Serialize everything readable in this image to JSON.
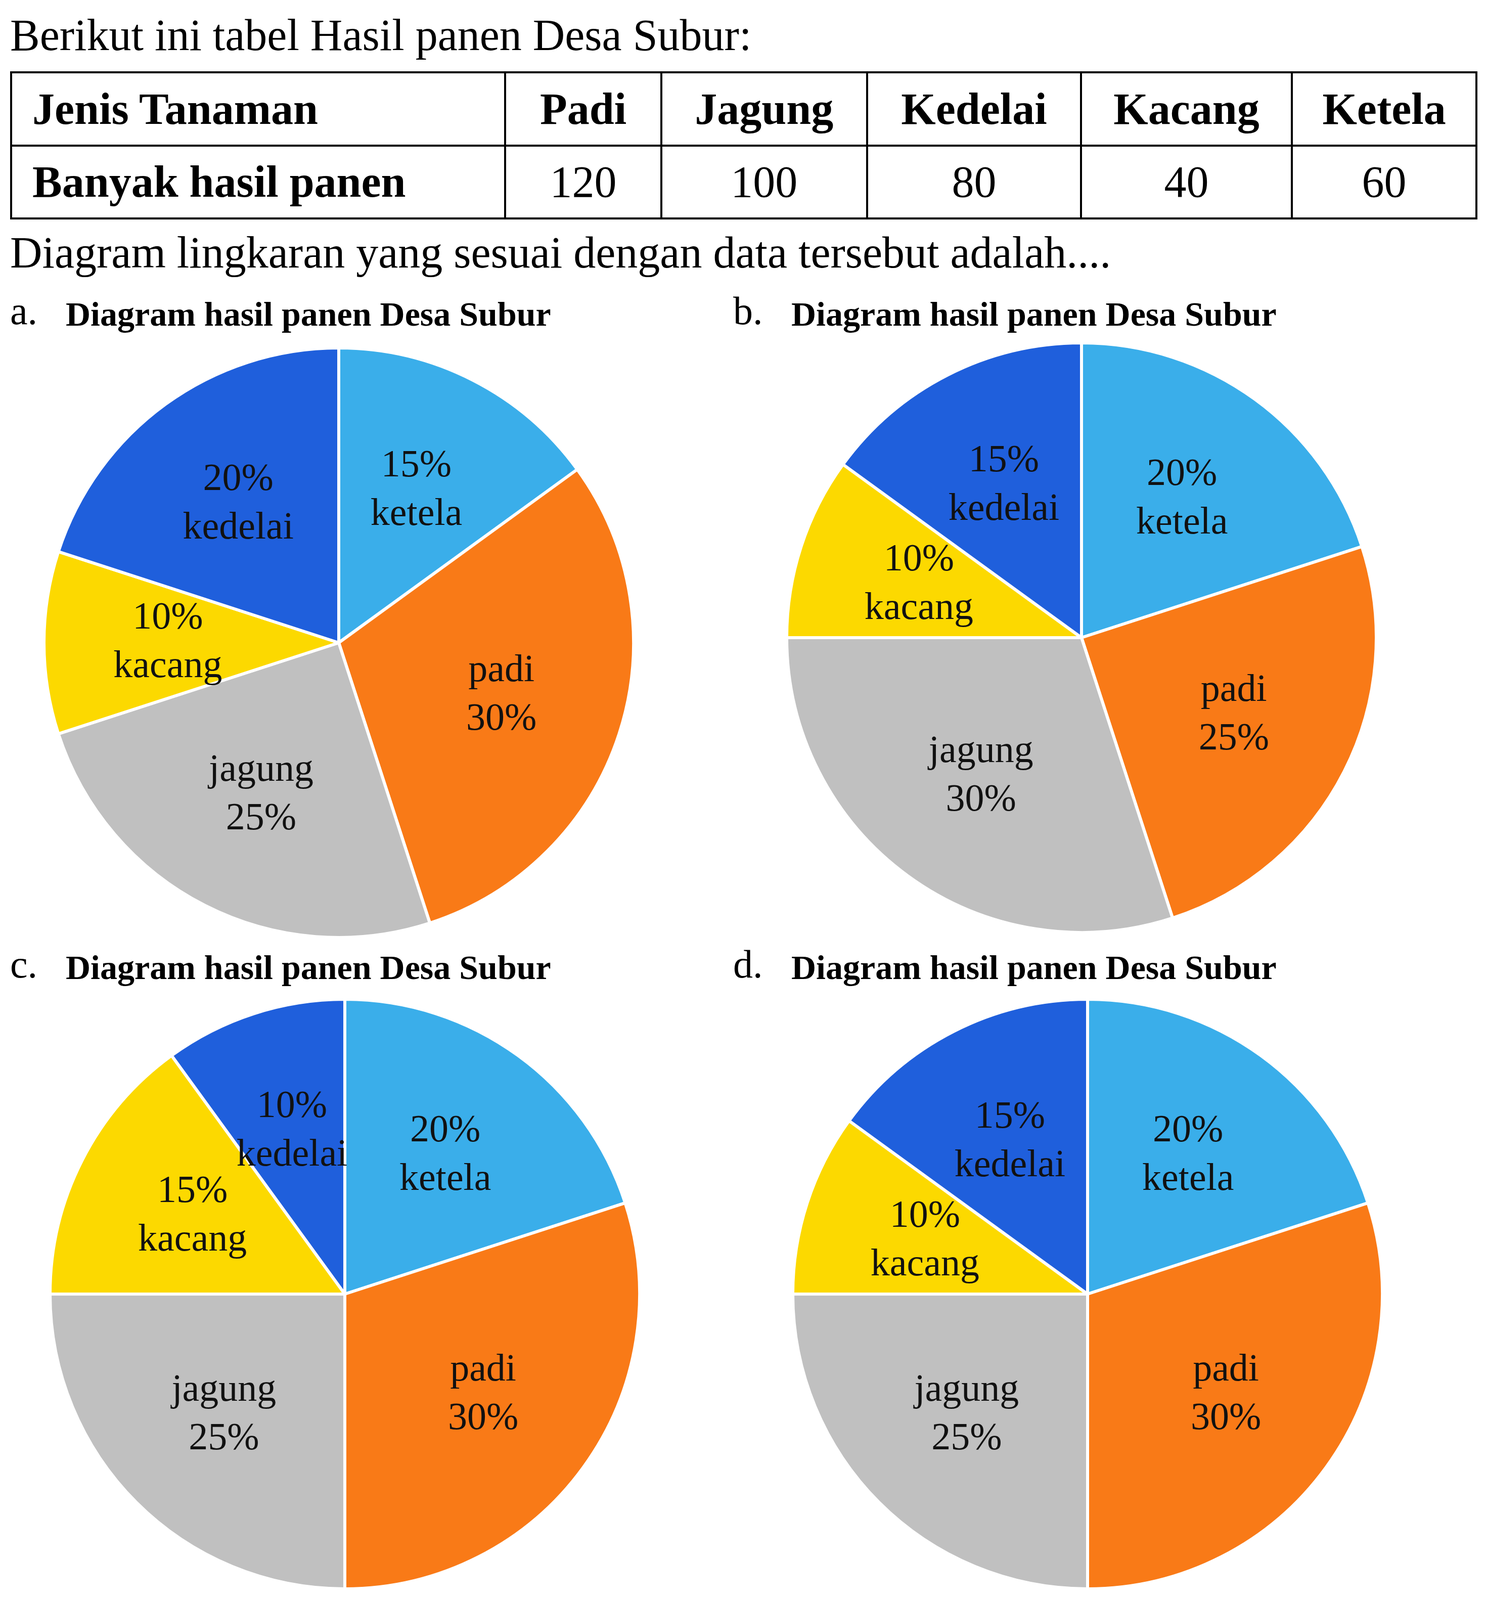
{
  "intro": "Berikut ini tabel Hasil panen Desa Subur:",
  "table": {
    "header": [
      "Jenis Tanaman",
      "Padi",
      "Jagung",
      "Kedelai",
      "Kacang",
      "Ketela"
    ],
    "rows": [
      [
        "Banyak hasil panen",
        120,
        100,
        80,
        40,
        60
      ]
    ]
  },
  "question": "Diagram lingkaran yang sesuai dengan data tersebut adalah....",
  "chart_data": [
    {
      "option": "a.",
      "type": "pie",
      "title": "Diagram hasil panen Desa Subur",
      "categories": [
        "ketela",
        "padi",
        "jagung",
        "kacang",
        "kedelai"
      ],
      "values": [
        15,
        30,
        25,
        10,
        20
      ],
      "value_labels": [
        "15%",
        "30%",
        "25%",
        "10%",
        "20%"
      ],
      "colors": [
        "#3aaeea",
        "#f97a17",
        "#c0c0c0",
        "#fcd900",
        "#1f5fdc"
      ],
      "data_labels": true
    },
    {
      "option": "b.",
      "type": "pie",
      "title": "Diagram hasil panen Desa Subur",
      "categories": [
        "ketela",
        "padi",
        "jagung",
        "kacang",
        "kedelai"
      ],
      "values": [
        20,
        25,
        30,
        10,
        15
      ],
      "value_labels": [
        "20%",
        "25%",
        "30%",
        "10%",
        "15%"
      ],
      "colors": [
        "#3aaeea",
        "#f97a17",
        "#c0c0c0",
        "#fcd900",
        "#1f5fdc"
      ],
      "data_labels": true
    },
    {
      "option": "c.",
      "type": "pie",
      "title": "Diagram hasil panen Desa Subur",
      "categories": [
        "ketela",
        "padi",
        "jagung",
        "kacang",
        "kedelai"
      ],
      "values": [
        20,
        30,
        25,
        15,
        10
      ],
      "value_labels": [
        "20%",
        "30%",
        "25%",
        "15%",
        "10%"
      ],
      "colors": [
        "#3aaeea",
        "#f97a17",
        "#c0c0c0",
        "#fcd900",
        "#1f5fdc"
      ],
      "data_labels": true
    },
    {
      "option": "d.",
      "type": "pie",
      "title": "Diagram hasil panen Desa Subur",
      "categories": [
        "ketela",
        "padi",
        "jagung",
        "kacang",
        "kedelai"
      ],
      "values": [
        20,
        30,
        25,
        10,
        15
      ],
      "value_labels": [
        "20%",
        "30%",
        "25%",
        "10%",
        "15%"
      ],
      "colors": [
        "#3aaeea",
        "#f97a17",
        "#c0c0c0",
        "#fcd900",
        "#1f5fdc"
      ],
      "data_labels": true
    }
  ]
}
